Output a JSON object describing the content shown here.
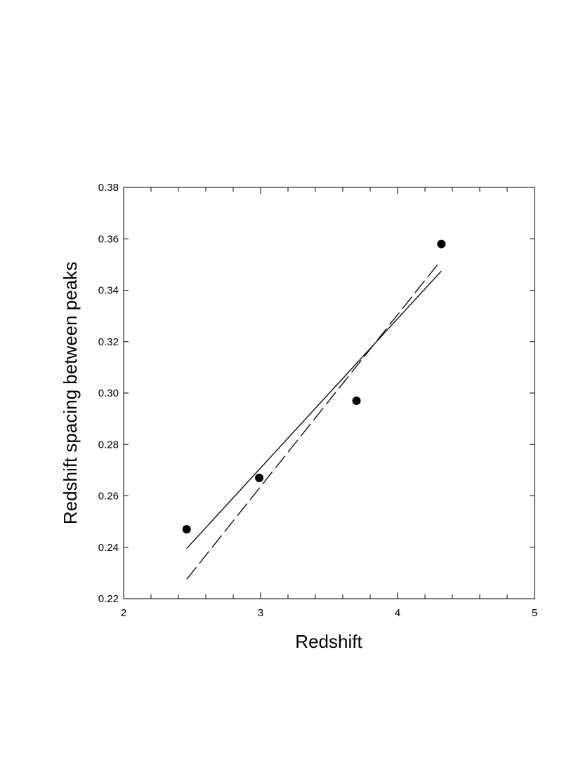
{
  "chart_data": {
    "type": "scatter",
    "title": "",
    "xlabel": "Redshift",
    "ylabel": "Redshift spacing between peaks",
    "xlim": [
      2,
      5
    ],
    "ylim": [
      0.22,
      0.38
    ],
    "grid": false,
    "x_ticks": [
      "2",
      "3",
      "4",
      "5"
    ],
    "y_ticks": [
      "0.22",
      "0.24",
      "0.26",
      "0.28",
      "0.30",
      "0.32",
      "0.34",
      "0.36",
      "0.38"
    ],
    "x_minor_step": 0.2,
    "points": [
      {
        "x": 2.46,
        "y": 0.247
      },
      {
        "x": 2.99,
        "y": 0.267
      },
      {
        "x": 3.7,
        "y": 0.297
      },
      {
        "x": 4.32,
        "y": 0.358
      }
    ],
    "lines": [
      {
        "style": "solid",
        "x": [
          2.46,
          4.32
        ],
        "y": [
          0.2395,
          0.3475
        ]
      },
      {
        "style": "dashed",
        "x": [
          2.46,
          4.3
        ],
        "y": [
          0.2275,
          0.3505
        ]
      }
    ],
    "colors": {
      "ink": "#000000",
      "background": "#ffffff"
    }
  }
}
